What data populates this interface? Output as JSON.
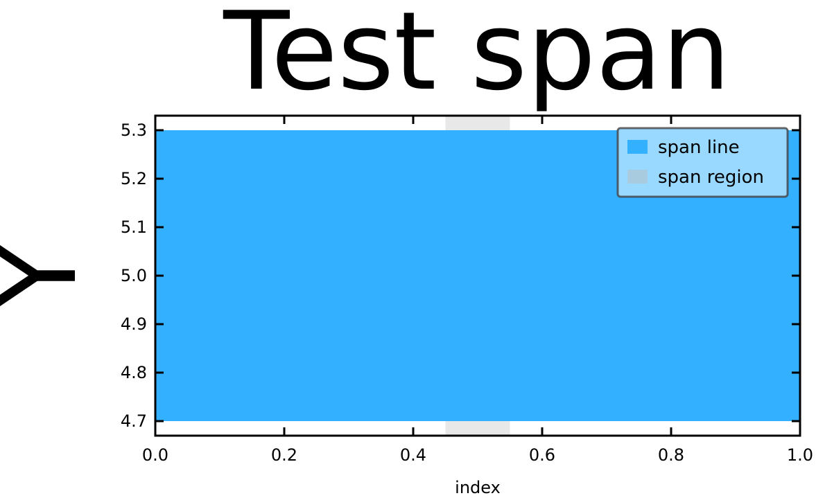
{
  "chart_data": {
    "type": "area",
    "title": "Test span",
    "xlabel": "index",
    "ylabel": "Y",
    "xlim": [
      0.0,
      1.0
    ],
    "ylim": [
      4.67,
      5.33
    ],
    "xticks": [
      0.0,
      0.2,
      0.4,
      0.6,
      0.8,
      1.0
    ],
    "xtick_labels": [
      "0.0",
      "0.2",
      "0.4",
      "0.6",
      "0.8",
      "1.0"
    ],
    "yticks": [
      4.7,
      4.8,
      4.9,
      5.0,
      5.1,
      5.2,
      5.3
    ],
    "ytick_labels": [
      "4.7",
      "4.8",
      "4.9",
      "5.0",
      "5.1",
      "5.2",
      "5.3"
    ],
    "grid": false,
    "legend_position": "top-right",
    "series": [
      {
        "name": "span line",
        "kind": "horizontal-span",
        "ymin": 4.7,
        "ymax": 5.3,
        "color": "#33b0ff"
      },
      {
        "name": "span region",
        "kind": "vertical-span",
        "xmin": 0.45,
        "xmax": 0.55,
        "color": "#e8e8e8"
      }
    ],
    "legend": {
      "entries": [
        "span line",
        "span region"
      ],
      "background": "#99d8ff",
      "border": "#444444",
      "swatch_colors": [
        "#33b0ff",
        "#a8cbe0"
      ]
    }
  }
}
